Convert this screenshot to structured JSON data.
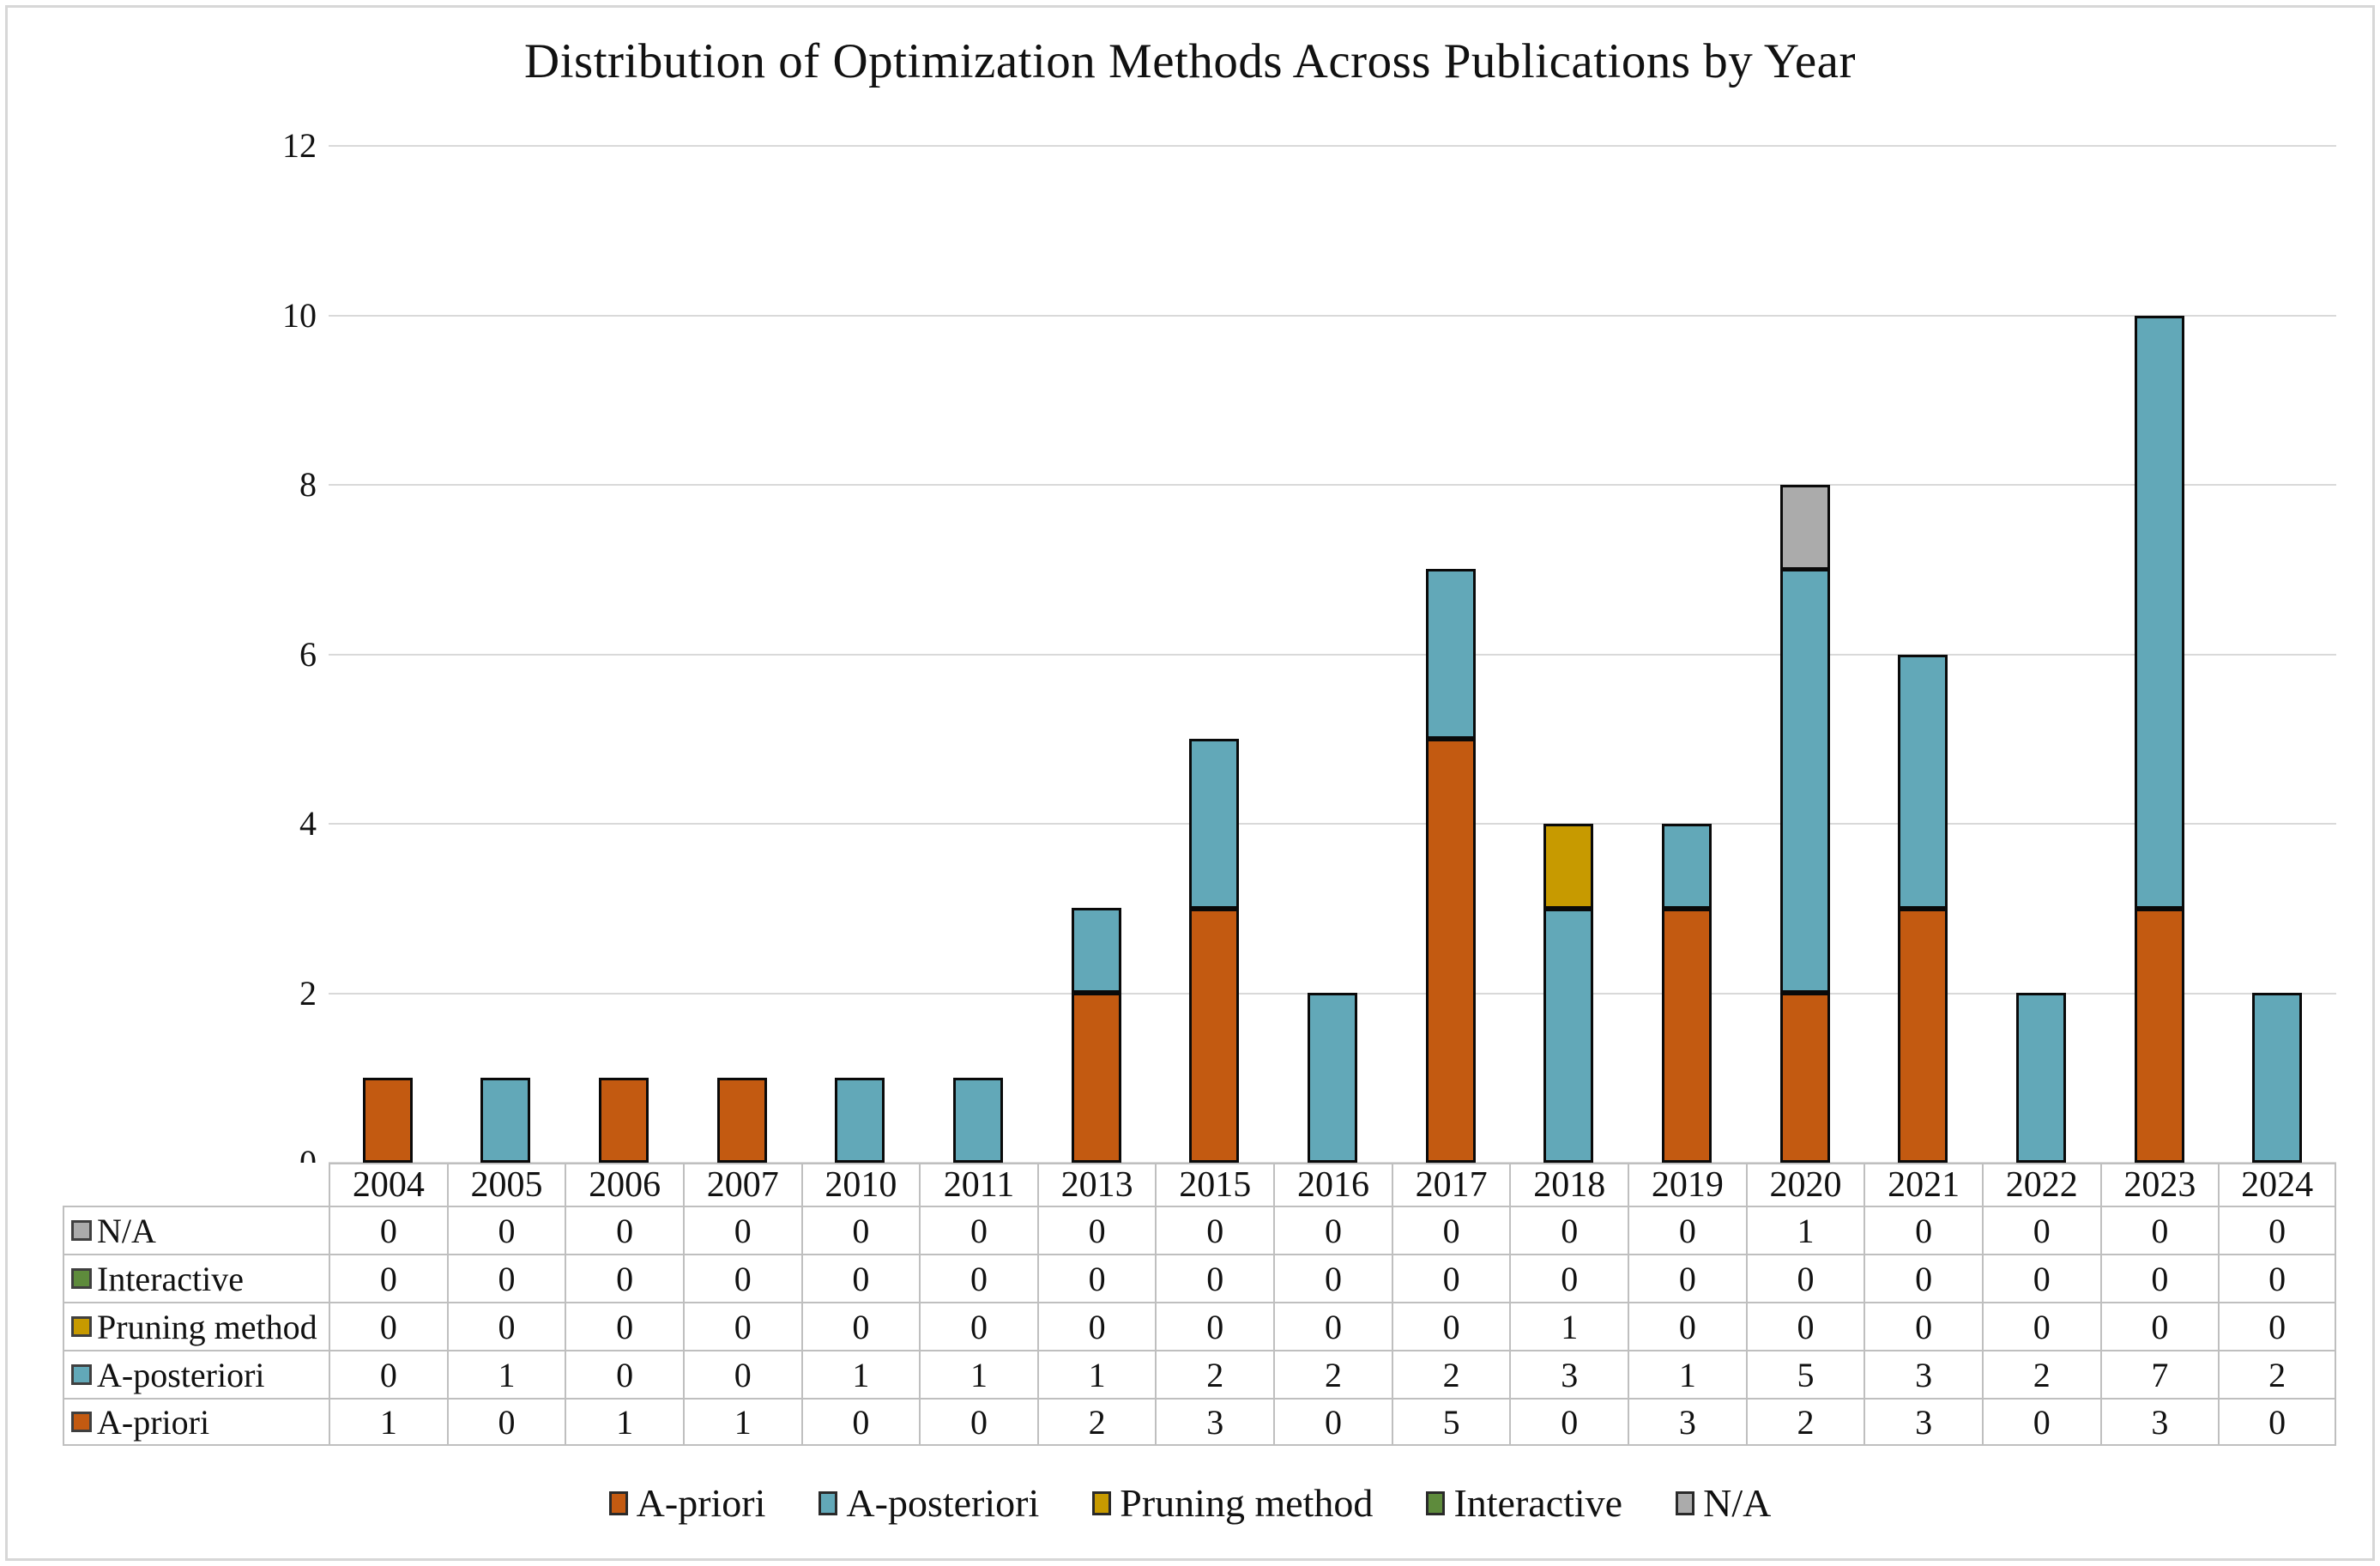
{
  "title": "Distribution of Optimization Methods Across Publications by Year",
  "colors": {
    "a_priori": "#C35A11",
    "a_posteriori": "#62A8B8",
    "pruning_method": "#C79A00",
    "interactive": "#5E8B3C",
    "na": "#ABABAB",
    "gridline": "#D9D9D9",
    "table_border": "#BFBFBF",
    "bar_outline": "#0A0A0A"
  },
  "chart_data": {
    "type": "bar",
    "stacked": true,
    "title": "Distribution of Optimization Methods Across Publications by Year",
    "xlabel": "",
    "ylabel": "",
    "ylim": [
      0,
      12
    ],
    "yticks": [
      0,
      2,
      4,
      6,
      8,
      10,
      12
    ],
    "grid": true,
    "legend_position": "bottom",
    "categories": [
      "2004",
      "2005",
      "2006",
      "2007",
      "2010",
      "2011",
      "2013",
      "2015",
      "2016",
      "2017",
      "2018",
      "2019",
      "2020",
      "2021",
      "2022",
      "2023",
      "2024"
    ],
    "series": [
      {
        "name": "A-priori",
        "color": "#C35A11",
        "values": [
          1,
          0,
          1,
          1,
          0,
          0,
          2,
          3,
          0,
          5,
          0,
          3,
          2,
          3,
          0,
          3,
          0
        ]
      },
      {
        "name": "A-posteriori",
        "color": "#62A8B8",
        "values": [
          0,
          1,
          0,
          0,
          1,
          1,
          1,
          2,
          2,
          2,
          3,
          1,
          5,
          3,
          2,
          7,
          2
        ]
      },
      {
        "name": "Pruning method",
        "color": "#C79A00",
        "values": [
          0,
          0,
          0,
          0,
          0,
          0,
          0,
          0,
          0,
          0,
          1,
          0,
          0,
          0,
          0,
          0,
          0
        ]
      },
      {
        "name": "Interactive",
        "color": "#5E8B3C",
        "values": [
          0,
          0,
          0,
          0,
          0,
          0,
          0,
          0,
          0,
          0,
          0,
          0,
          0,
          0,
          0,
          0,
          0
        ]
      },
      {
        "name": "N/A",
        "color": "#ABABAB",
        "values": [
          0,
          0,
          0,
          0,
          0,
          0,
          0,
          0,
          0,
          0,
          0,
          0,
          1,
          0,
          0,
          0,
          0
        ]
      }
    ],
    "table_row_order": [
      "N/A",
      "Interactive",
      "Pruning method",
      "A-posteriori",
      "A-priori"
    ],
    "legend_order": [
      "A-priori",
      "A-posteriori",
      "Pruning method",
      "Interactive",
      "N/A"
    ]
  }
}
